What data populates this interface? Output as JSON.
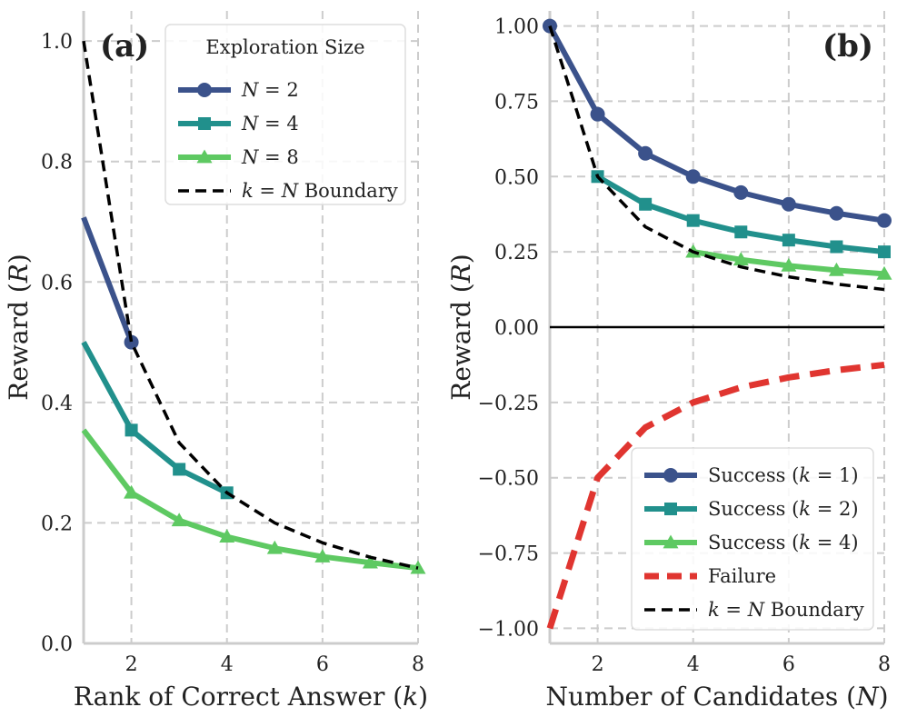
{
  "chart_data": [
    {
      "type": "line",
      "panel_label": "(a)",
      "xlabel": "Rank of Correct Answer (k)",
      "ylabel": "Reward (R)",
      "xlim": [
        1,
        8
      ],
      "ylim": [
        0,
        1.05
      ],
      "xticks": [
        2,
        4,
        6,
        8
      ],
      "yticks": [
        0.0,
        0.2,
        0.4,
        0.6,
        0.8,
        1.0
      ],
      "ytick_labels": [
        "0.0",
        "0.2",
        "0.4",
        "0.6",
        "0.8",
        "1.0"
      ],
      "grid": true,
      "legend": {
        "title": "Exploration Size",
        "placement": "top-right"
      },
      "series": [
        {
          "name": "N = 2",
          "color": "#3b528b",
          "marker": "circle",
          "line": "solid",
          "x": [
            1,
            2
          ],
          "y": [
            0.707,
            0.5
          ],
          "marker_x": [
            2
          ]
        },
        {
          "name": "N = 4",
          "color": "#21908c",
          "marker": "square",
          "line": "solid",
          "x": [
            1,
            2,
            3,
            4
          ],
          "y": [
            0.5,
            0.354,
            0.289,
            0.25
          ],
          "marker_x": [
            2,
            3,
            4
          ]
        },
        {
          "name": "N = 8",
          "color": "#5ec962",
          "marker": "triangle",
          "line": "solid",
          "x": [
            1,
            2,
            3,
            4,
            5,
            6,
            7,
            8
          ],
          "y": [
            0.354,
            0.25,
            0.204,
            0.177,
            0.158,
            0.144,
            0.134,
            0.125
          ],
          "marker_x": [
            2,
            3,
            4,
            5,
            6,
            7,
            8
          ]
        },
        {
          "name": "k = N Boundary",
          "color": "#000000",
          "marker": "none",
          "line": "dashed",
          "x": [
            1,
            2,
            3,
            4,
            5,
            6,
            7,
            8
          ],
          "y": [
            1.0,
            0.5,
            0.333,
            0.25,
            0.2,
            0.167,
            0.143,
            0.125
          ],
          "marker_x": []
        }
      ]
    },
    {
      "type": "line",
      "panel_label": "(b)",
      "xlabel": "Number of Candidates (N)",
      "ylabel": "Reward (R)",
      "xlim": [
        1,
        8
      ],
      "ylim": [
        -1.05,
        1.05
      ],
      "xticks": [
        2,
        4,
        6,
        8
      ],
      "yticks": [
        -1.0,
        -0.75,
        -0.5,
        -0.25,
        0.0,
        0.25,
        0.5,
        0.75,
        1.0
      ],
      "ytick_labels": [
        "−1.00",
        "−0.75",
        "−0.50",
        "−0.25",
        "0.00",
        "0.25",
        "0.50",
        "0.75",
        "1.00"
      ],
      "zero_line": true,
      "grid": true,
      "legend": {
        "title": "",
        "placement": "bottom-right"
      },
      "series": [
        {
          "name": "Success (k = 1)",
          "color": "#3b528b",
          "marker": "circle",
          "line": "solid",
          "x": [
            1,
            2,
            3,
            4,
            5,
            6,
            7,
            8
          ],
          "y": [
            1.0,
            0.707,
            0.577,
            0.5,
            0.447,
            0.408,
            0.378,
            0.354
          ],
          "marker_x": [
            1,
            2,
            3,
            4,
            5,
            6,
            7,
            8
          ]
        },
        {
          "name": "Success (k = 2)",
          "color": "#21908c",
          "marker": "square",
          "line": "solid",
          "x": [
            2,
            3,
            4,
            5,
            6,
            7,
            8
          ],
          "y": [
            0.5,
            0.408,
            0.354,
            0.316,
            0.289,
            0.267,
            0.25
          ],
          "marker_x": [
            2,
            3,
            4,
            5,
            6,
            7,
            8
          ]
        },
        {
          "name": "Success (k = 4)",
          "color": "#5ec962",
          "marker": "triangle",
          "line": "solid",
          "x": [
            4,
            5,
            6,
            7,
            8
          ],
          "y": [
            0.25,
            0.224,
            0.204,
            0.189,
            0.177
          ],
          "marker_x": [
            4,
            5,
            6,
            7,
            8
          ]
        },
        {
          "name": "Failure",
          "color": "#e03530",
          "marker": "none",
          "line": "dashed-thick",
          "x": [
            1,
            2,
            3,
            4,
            5,
            6,
            7,
            8
          ],
          "y": [
            -1.0,
            -0.5,
            -0.333,
            -0.25,
            -0.2,
            -0.167,
            -0.143,
            -0.125
          ],
          "marker_x": []
        },
        {
          "name": "k = N Boundary",
          "color": "#000000",
          "marker": "none",
          "line": "dashed",
          "x": [
            1,
            2,
            3,
            4,
            5,
            6,
            7,
            8
          ],
          "y": [
            1.0,
            0.5,
            0.333,
            0.25,
            0.2,
            0.167,
            0.143,
            0.125
          ],
          "marker_x": []
        }
      ]
    }
  ]
}
